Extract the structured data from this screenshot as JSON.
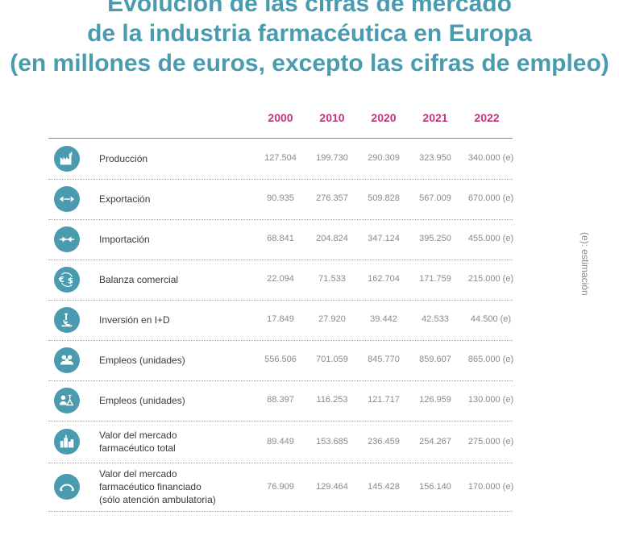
{
  "title": {
    "line1": "Evolución de las cifras de mercado",
    "line2": "de la industria farmacéutica en Europa",
    "line3": "(en millones de euros, excepto las cifras de empleo)"
  },
  "years": [
    "2000",
    "2010",
    "2020",
    "2021",
    "2022"
  ],
  "note": "(e): estimación",
  "colors": {
    "accent": "#4a9bb0",
    "year": "#c2337d"
  },
  "rows": [
    {
      "label": "Producción",
      "icon": "factory-icon",
      "values": [
        "127.504",
        "199.730",
        "290.309",
        "323.950",
        "340.000 (e)"
      ]
    },
    {
      "label": "Exportación",
      "icon": "export-arrows-icon",
      "values": [
        "90.935",
        "276.357",
        "509.828",
        "567.009",
        "670.000 (e)"
      ]
    },
    {
      "label": "Importación",
      "icon": "import-arrows-icon",
      "values": [
        "68.841",
        "204.824",
        "347.124",
        "395.250",
        "455.000 (e)"
      ]
    },
    {
      "label": "Balanza comercial",
      "icon": "currency-exchange-icon",
      "values": [
        "22.094",
        "71.533",
        "162.704",
        "171.759",
        "215.000 (e)"
      ]
    },
    {
      "label": "Inversión en I+D",
      "icon": "microscope-icon",
      "values": [
        "17.849",
        "27.920",
        "39.442",
        "42.533",
        "44.500 (e)"
      ]
    },
    {
      "label": "Empleos (unidades)",
      "icon": "people-icon",
      "values": [
        "556.506",
        "701.059",
        "845.770",
        "859.607",
        "865.000 (e)"
      ]
    },
    {
      "label": "Empleos (unidades)",
      "icon": "people-research-icon",
      "values": [
        "88.397",
        "116.253",
        "121.717",
        "126.959",
        "130.000 (e)"
      ]
    },
    {
      "label1": "Valor del mercado",
      "label2": "farmacéutico total",
      "icon": "market-building-icon",
      "values": [
        "89.449",
        "153.685",
        "236.459",
        "254.267",
        "275.000 (e)"
      ]
    },
    {
      "label1": "Valor del mercado",
      "label2": "farmacéutico financiado",
      "label3": "(sólo atención ambulatoria)",
      "icon": "financed-bridge-icon",
      "values": [
        "76.909",
        "129.464",
        "145.428",
        "156.140",
        "170.000 (e)"
      ]
    }
  ]
}
